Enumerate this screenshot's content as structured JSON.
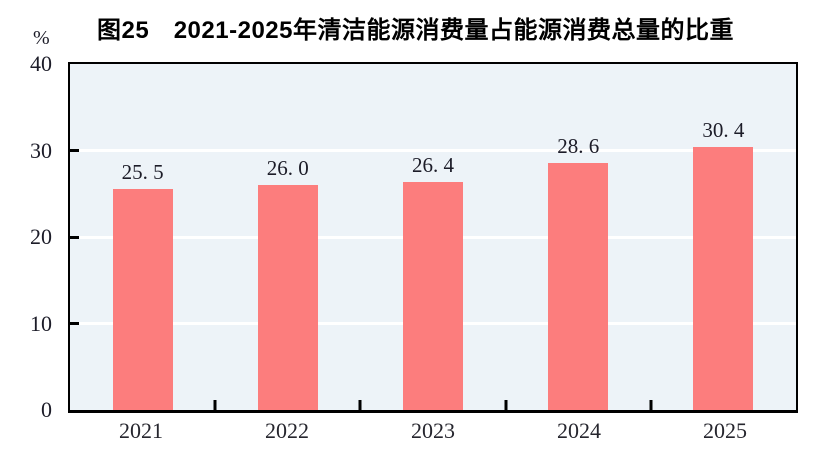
{
  "chart": {
    "title": "图25　2021-2025年清洁能源消费量占能源消费总量的比重",
    "unit": "%"
  },
  "chart_data": {
    "type": "bar",
    "title": "图25　2021-2025年清洁能源消费量占能源消费总量的比重",
    "unit": "%",
    "categories": [
      "2021",
      "2022",
      "2023",
      "2024",
      "2025"
    ],
    "values": [
      25.5,
      26.0,
      26.4,
      28.6,
      30.4
    ],
    "point_labels": [
      "25. 5",
      "26. 0",
      "26. 4",
      "28. 6",
      "30. 4"
    ],
    "xlabel": "",
    "ylabel": "%",
    "ylim": [
      0,
      40
    ],
    "yticks": [
      0,
      10,
      20,
      30,
      40
    ],
    "ytick_labels": [
      "0",
      "10",
      "20",
      "30",
      "40"
    ],
    "gridlines": [
      10,
      20,
      30
    ],
    "grid": "horizontal-white-on-tinted-background",
    "legend": "none",
    "bar_color": "#FC7D7D",
    "plot_bg": "#EDF3F8",
    "axis_color": "#000000"
  }
}
